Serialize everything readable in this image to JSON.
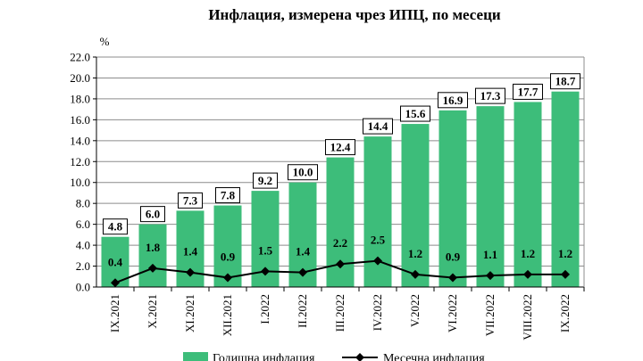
{
  "chart_data": {
    "type": "bar",
    "title": "Инфлация, измерена чрез ИПЦ, по месеци",
    "ylabel": "%",
    "xlabel": "",
    "ylim": [
      0,
      22
    ],
    "yticks": [
      "0.0",
      "2.0",
      "4.0",
      "6.0",
      "8.0",
      "10.0",
      "12.0",
      "14.0",
      "16.0",
      "18.0",
      "20.0",
      "22.0"
    ],
    "categories": [
      "IX.2021",
      "X.2021",
      "XI.2021",
      "XII.2021",
      "I.2022",
      "II.2022",
      "III.2022",
      "IV.2022",
      "V.2022",
      "VI.2022",
      "VII.2022",
      "VIII.2022",
      "IX.2022"
    ],
    "grid": true,
    "legend_position": "bottom",
    "series": [
      {
        "name": "Годишна инфлация",
        "type": "bar",
        "color": "#3dbd7a",
        "values": [
          4.8,
          6.0,
          7.3,
          7.8,
          9.2,
          10.0,
          12.4,
          14.4,
          15.6,
          16.9,
          17.3,
          17.7,
          18.7
        ],
        "labels": [
          "4.8",
          "6.0",
          "7.3",
          "7.8",
          "9.2",
          "10.0",
          "12.4",
          "14.4",
          "15.6",
          "16.9",
          "17.3",
          "17.7",
          "18.7"
        ]
      },
      {
        "name": "Месечна инфлация",
        "type": "line",
        "color": "#000000",
        "marker": "diamond",
        "values": [
          0.4,
          1.8,
          1.4,
          0.9,
          1.5,
          1.4,
          2.2,
          2.5,
          1.2,
          0.9,
          1.1,
          1.2,
          1.2
        ],
        "labels": [
          "0.4",
          "1.8",
          "1.4",
          "0.9",
          "1.5",
          "1.4",
          "2.2",
          "2.5",
          "1.2",
          "0.9",
          "1.1",
          "1.2",
          "1.2"
        ]
      }
    ]
  }
}
